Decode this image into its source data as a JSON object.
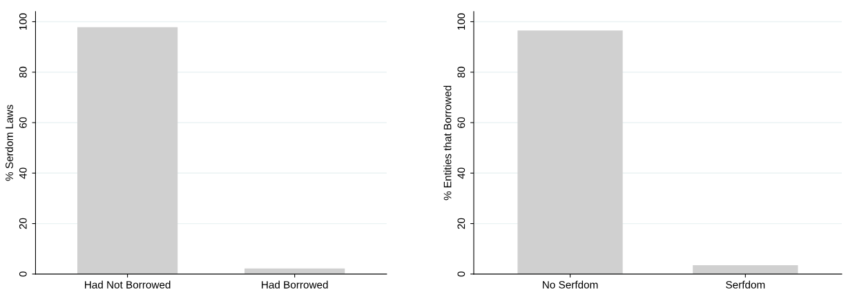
{
  "chart_data": [
    {
      "type": "bar",
      "ylabel": "% Serdom Laws",
      "categories": [
        "Had Not Borrowed",
        "Had Borrowed"
      ],
      "values": [
        97.8,
        2.2
      ],
      "color": "#d0d0d0",
      "ylim": [
        0,
        104
      ],
      "yticks": [
        0,
        20,
        40,
        60,
        80,
        100
      ],
      "grid": "y",
      "legend": false
    },
    {
      "type": "bar",
      "ylabel": "% Entities that Borrowed",
      "categories": [
        "No Serfdom",
        "Serfdom"
      ],
      "values": [
        96.5,
        3.5
      ],
      "color": "#d0d0d0",
      "ylim": [
        0,
        104
      ],
      "yticks": [
        0,
        20,
        40,
        60,
        80,
        100
      ],
      "grid": "y",
      "legend": false
    }
  ]
}
